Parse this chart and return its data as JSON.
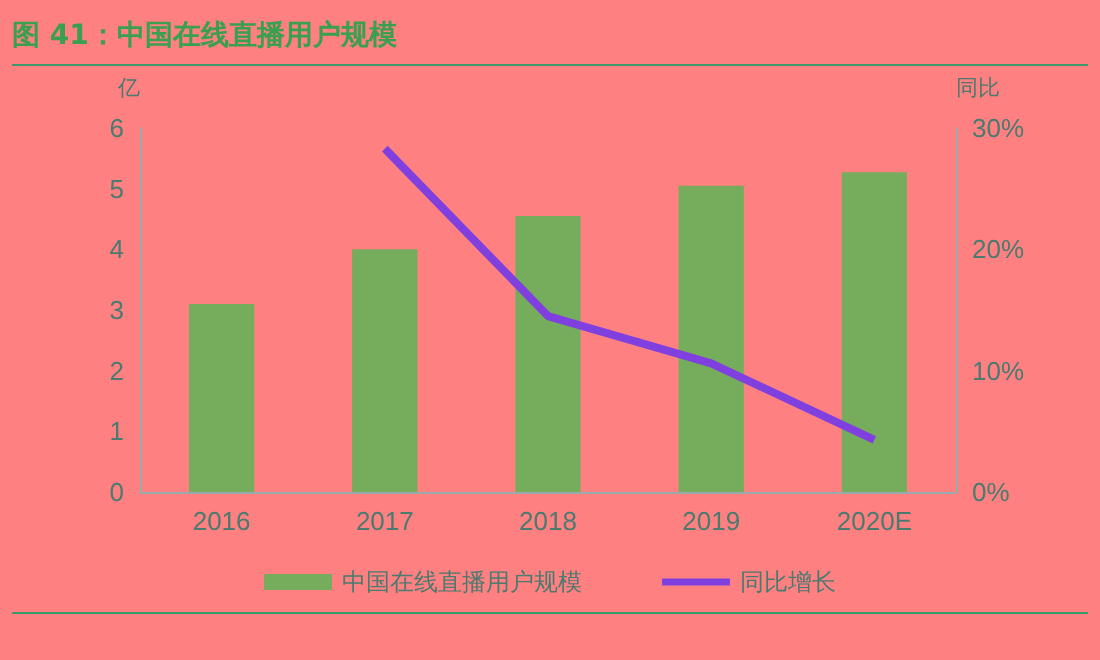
{
  "chart_data": {
    "type": "bar",
    "title": "图 41：中国在线直播用户规模",
    "ylabel": "亿",
    "y2label": "同比",
    "categories": [
      "2016",
      "2017",
      "2018",
      "2019",
      "2020E"
    ],
    "series": [
      {
        "name": "中国在线直播用户规模",
        "color": "#76ad5c",
        "values": [
          3.1,
          4.0,
          4.55,
          5.05,
          5.27
        ]
      },
      {
        "name": "同比增长",
        "type": "line",
        "axis": "y2",
        "color": "#8040e0",
        "marker": "none",
        "values": [
          null,
          28.3,
          14.5,
          10.6,
          4.3
        ]
      }
    ],
    "ylim": [
      0,
      6
    ],
    "yticks": [
      0,
      1,
      2,
      3,
      4,
      5,
      6
    ],
    "y2lim": [
      0,
      30
    ],
    "y2ticks": [
      {
        "value": 0,
        "label": "0%"
      },
      {
        "value": 10,
        "label": "10%"
      },
      {
        "value": 20,
        "label": "20%"
      },
      {
        "value": 30,
        "label": "30%"
      }
    ],
    "grid": false,
    "legend": "bottom"
  }
}
